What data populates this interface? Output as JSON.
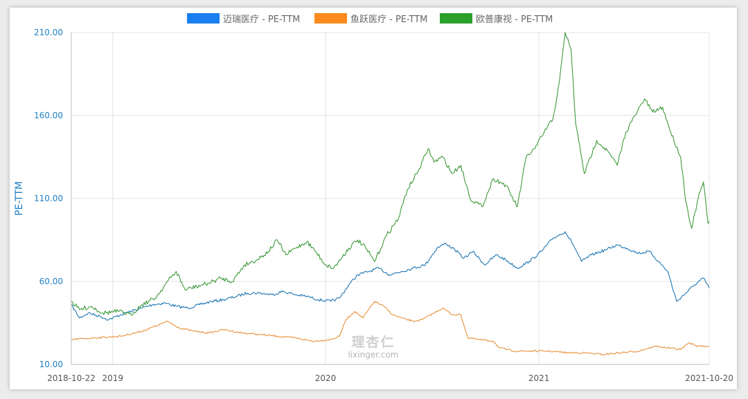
{
  "chart_data": {
    "type": "line",
    "ylabel": "PE-TTM",
    "ylim": [
      10,
      210
    ],
    "y_ticks": [
      "210.00",
      "160.00",
      "110.00",
      "60.00",
      "10.00"
    ],
    "x_ticks": [
      {
        "date": "2018-10-22",
        "label": "2018-10-22"
      },
      {
        "date": "2019-01-01",
        "label": "2019"
      },
      {
        "date": "2020-01-01",
        "label": "2020"
      },
      {
        "date": "2021-01-01",
        "label": "2021"
      },
      {
        "date": "2021-10-20",
        "label": "2021-10-20"
      }
    ],
    "x_range": [
      "2018-10-22",
      "2021-10-20"
    ],
    "grid": true,
    "legend_position": "top-center",
    "watermark": {
      "cn": "理杏仁",
      "en": "lixinger.com"
    },
    "series": [
      {
        "name": "迈瑞医疗 - PE-TTM",
        "color": "#1f77b4",
        "legend_color": "#1a7ff0",
        "points": [
          [
            "2018-10-22",
            46
          ],
          [
            "2018-11-05",
            38
          ],
          [
            "2018-11-20",
            41
          ],
          [
            "2018-12-10",
            39
          ],
          [
            "2018-12-25",
            37
          ],
          [
            "2019-01-15",
            40
          ],
          [
            "2019-02-01",
            42
          ],
          [
            "2019-02-20",
            44
          ],
          [
            "2019-03-10",
            46
          ],
          [
            "2019-04-01",
            47
          ],
          [
            "2019-04-20",
            45
          ],
          [
            "2019-05-10",
            44
          ],
          [
            "2019-05-30",
            46
          ],
          [
            "2019-06-20",
            48
          ],
          [
            "2019-07-10",
            49
          ],
          [
            "2019-08-01",
            51
          ],
          [
            "2019-08-20",
            53
          ],
          [
            "2019-09-10",
            53
          ],
          [
            "2019-10-01",
            52
          ],
          [
            "2019-10-20",
            54
          ],
          [
            "2019-11-10",
            52
          ],
          [
            "2019-11-30",
            51
          ],
          [
            "2019-12-20",
            49
          ],
          [
            "2020-01-10",
            48
          ],
          [
            "2020-01-25",
            50
          ],
          [
            "2020-02-10",
            58
          ],
          [
            "2020-02-25",
            64
          ],
          [
            "2020-03-15",
            66
          ],
          [
            "2020-04-01",
            68
          ],
          [
            "2020-04-20",
            64
          ],
          [
            "2020-05-10",
            66
          ],
          [
            "2020-05-30",
            68
          ],
          [
            "2020-06-20",
            70
          ],
          [
            "2020-07-10",
            80
          ],
          [
            "2020-07-25",
            83
          ],
          [
            "2020-08-10",
            79
          ],
          [
            "2020-08-25",
            74
          ],
          [
            "2020-09-10",
            78
          ],
          [
            "2020-09-30",
            70
          ],
          [
            "2020-10-20",
            76
          ],
          [
            "2020-11-05",
            73
          ],
          [
            "2020-11-25",
            68
          ],
          [
            "2020-12-15",
            72
          ],
          [
            "2021-01-05",
            78
          ],
          [
            "2021-01-25",
            86
          ],
          [
            "2021-02-15",
            90
          ],
          [
            "2021-03-01",
            82
          ],
          [
            "2021-03-15",
            72
          ],
          [
            "2021-04-01",
            76
          ],
          [
            "2021-04-25",
            79
          ],
          [
            "2021-05-15",
            82
          ],
          [
            "2021-06-01",
            80
          ],
          [
            "2021-06-20",
            77
          ],
          [
            "2021-07-10",
            78
          ],
          [
            "2021-07-25",
            72
          ],
          [
            "2021-08-10",
            66
          ],
          [
            "2021-08-25",
            48
          ],
          [
            "2021-09-10",
            53
          ],
          [
            "2021-09-25",
            58
          ],
          [
            "2021-10-10",
            62
          ],
          [
            "2021-10-20",
            56
          ]
        ]
      },
      {
        "name": "鱼跃医疗 - PE-TTM",
        "color": "#e8903a",
        "legend_color": "#fb8b1e",
        "points": [
          [
            "2018-10-22",
            25
          ],
          [
            "2018-12-01",
            26
          ],
          [
            "2019-01-15",
            27
          ],
          [
            "2019-02-20",
            30
          ],
          [
            "2019-03-15",
            33
          ],
          [
            "2019-04-05",
            36
          ],
          [
            "2019-04-25",
            32
          ],
          [
            "2019-05-20",
            30
          ],
          [
            "2019-06-15",
            29
          ],
          [
            "2019-07-10",
            31
          ],
          [
            "2019-08-10",
            29
          ],
          [
            "2019-09-10",
            28
          ],
          [
            "2019-10-10",
            27
          ],
          [
            "2019-11-10",
            26
          ],
          [
            "2019-12-10",
            24
          ],
          [
            "2020-01-10",
            25
          ],
          [
            "2020-01-25",
            27
          ],
          [
            "2020-02-05",
            37
          ],
          [
            "2020-02-20",
            42
          ],
          [
            "2020-03-05",
            38
          ],
          [
            "2020-03-25",
            48
          ],
          [
            "2020-04-10",
            45
          ],
          [
            "2020-04-25",
            40
          ],
          [
            "2020-05-10",
            38
          ],
          [
            "2020-05-30",
            36
          ],
          [
            "2020-06-15",
            37
          ],
          [
            "2020-07-05",
            41
          ],
          [
            "2020-07-20",
            44
          ],
          [
            "2020-08-05",
            40
          ],
          [
            "2020-08-20",
            40
          ],
          [
            "2020-09-01",
            26
          ],
          [
            "2020-09-20",
            25
          ],
          [
            "2020-10-15",
            24
          ],
          [
            "2020-10-25",
            20
          ],
          [
            "2020-11-20",
            18
          ],
          [
            "2020-12-20",
            18
          ],
          [
            "2021-01-20",
            18
          ],
          [
            "2021-02-20",
            17
          ],
          [
            "2021-03-20",
            17
          ],
          [
            "2021-04-20",
            16
          ],
          [
            "2021-05-20",
            17
          ],
          [
            "2021-06-20",
            18
          ],
          [
            "2021-07-20",
            21
          ],
          [
            "2021-08-10",
            20
          ],
          [
            "2021-09-01",
            19
          ],
          [
            "2021-09-15",
            23
          ],
          [
            "2021-10-01",
            21
          ],
          [
            "2021-10-20",
            21
          ]
        ]
      },
      {
        "name": "欧普康视 - PE-TTM",
        "color": "#3d9a3a",
        "legend_color": "#2ca02c",
        "points": [
          [
            "2018-10-22",
            48
          ],
          [
            "2018-11-05",
            43
          ],
          [
            "2018-11-25",
            45
          ],
          [
            "2018-12-15",
            41
          ],
          [
            "2019-01-10",
            42
          ],
          [
            "2019-02-01",
            40
          ],
          [
            "2019-02-20",
            46
          ],
          [
            "2019-03-15",
            50
          ],
          [
            "2019-04-05",
            60
          ],
          [
            "2019-04-20",
            66
          ],
          [
            "2019-05-05",
            55
          ],
          [
            "2019-05-25",
            57
          ],
          [
            "2019-06-15",
            59
          ],
          [
            "2019-07-05",
            62
          ],
          [
            "2019-07-25",
            60
          ],
          [
            "2019-08-15",
            70
          ],
          [
            "2019-09-05",
            73
          ],
          [
            "2019-09-25",
            78
          ],
          [
            "2019-10-10",
            85
          ],
          [
            "2019-10-25",
            76
          ],
          [
            "2019-11-10",
            80
          ],
          [
            "2019-11-30",
            84
          ],
          [
            "2019-12-15",
            78
          ],
          [
            "2020-01-01",
            70
          ],
          [
            "2020-01-15",
            68
          ],
          [
            "2020-02-10",
            80
          ],
          [
            "2020-02-25",
            85
          ],
          [
            "2020-03-10",
            80
          ],
          [
            "2020-03-25",
            72
          ],
          [
            "2020-04-15",
            88
          ],
          [
            "2020-05-05",
            98
          ],
          [
            "2020-05-20",
            115
          ],
          [
            "2020-06-10",
            128
          ],
          [
            "2020-06-25",
            140
          ],
          [
            "2020-07-05",
            132
          ],
          [
            "2020-07-20",
            135
          ],
          [
            "2020-08-05",
            125
          ],
          [
            "2020-08-20",
            130
          ],
          [
            "2020-09-05",
            110
          ],
          [
            "2020-09-25",
            105
          ],
          [
            "2020-10-15",
            122
          ],
          [
            "2020-11-05",
            118
          ],
          [
            "2020-11-25",
            105
          ],
          [
            "2020-12-10",
            135
          ],
          [
            "2020-12-25",
            140
          ],
          [
            "2021-01-10",
            150
          ],
          [
            "2021-01-25",
            158
          ],
          [
            "2021-02-05",
            180
          ],
          [
            "2021-02-15",
            210
          ],
          [
            "2021-02-25",
            200
          ],
          [
            "2021-03-05",
            155
          ],
          [
            "2021-03-20",
            125
          ],
          [
            "2021-04-10",
            145
          ],
          [
            "2021-04-30",
            138
          ],
          [
            "2021-05-15",
            130
          ],
          [
            "2021-05-30",
            150
          ],
          [
            "2021-06-15",
            160
          ],
          [
            "2021-07-01",
            170
          ],
          [
            "2021-07-15",
            162
          ],
          [
            "2021-08-01",
            165
          ],
          [
            "2021-08-15",
            150
          ],
          [
            "2021-09-01",
            135
          ],
          [
            "2021-09-10",
            108
          ],
          [
            "2021-09-20",
            92
          ],
          [
            "2021-10-01",
            110
          ],
          [
            "2021-10-10",
            120
          ],
          [
            "2021-10-18",
            95
          ],
          [
            "2021-10-20",
            96
          ]
        ]
      }
    ]
  }
}
